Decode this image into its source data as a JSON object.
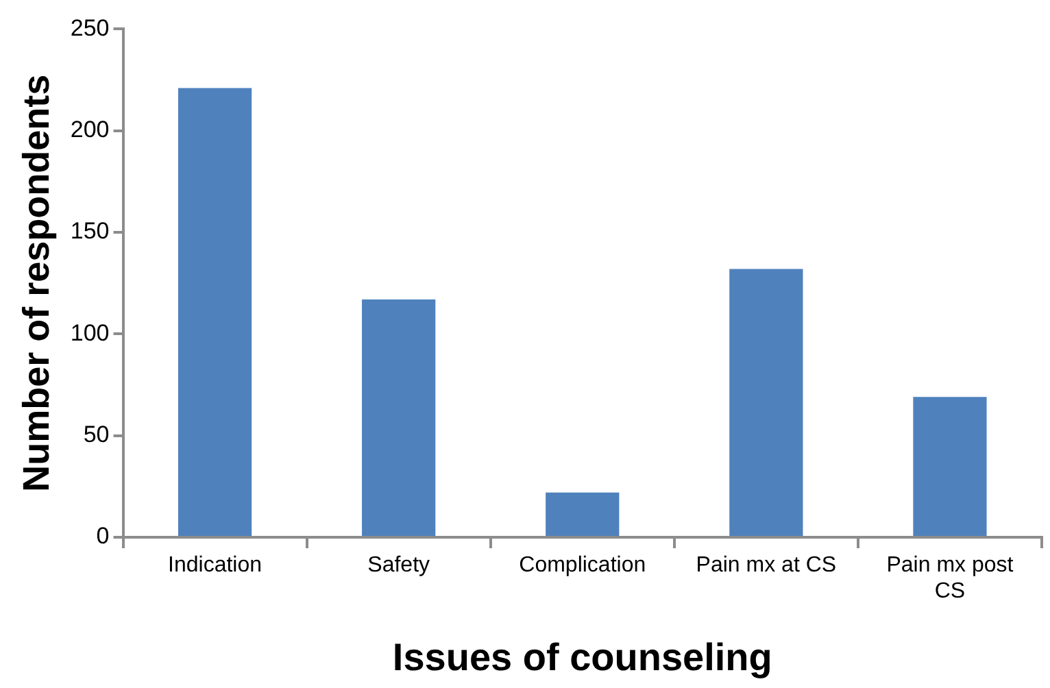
{
  "chart_data": {
    "type": "bar",
    "xlabel": "Issues of counseling",
    "ylabel": "Number of respondents",
    "categories": [
      "Indication",
      "Safety",
      "Complication",
      "Pain mx at CS",
      "Pain mx post CS"
    ],
    "values": [
      221,
      117,
      22,
      132,
      69
    ],
    "color": "#4f81bd",
    "ylim": [
      0,
      250
    ],
    "yticks": [
      0,
      50,
      100,
      150,
      200,
      250
    ],
    "grid": false,
    "legend": false
  }
}
